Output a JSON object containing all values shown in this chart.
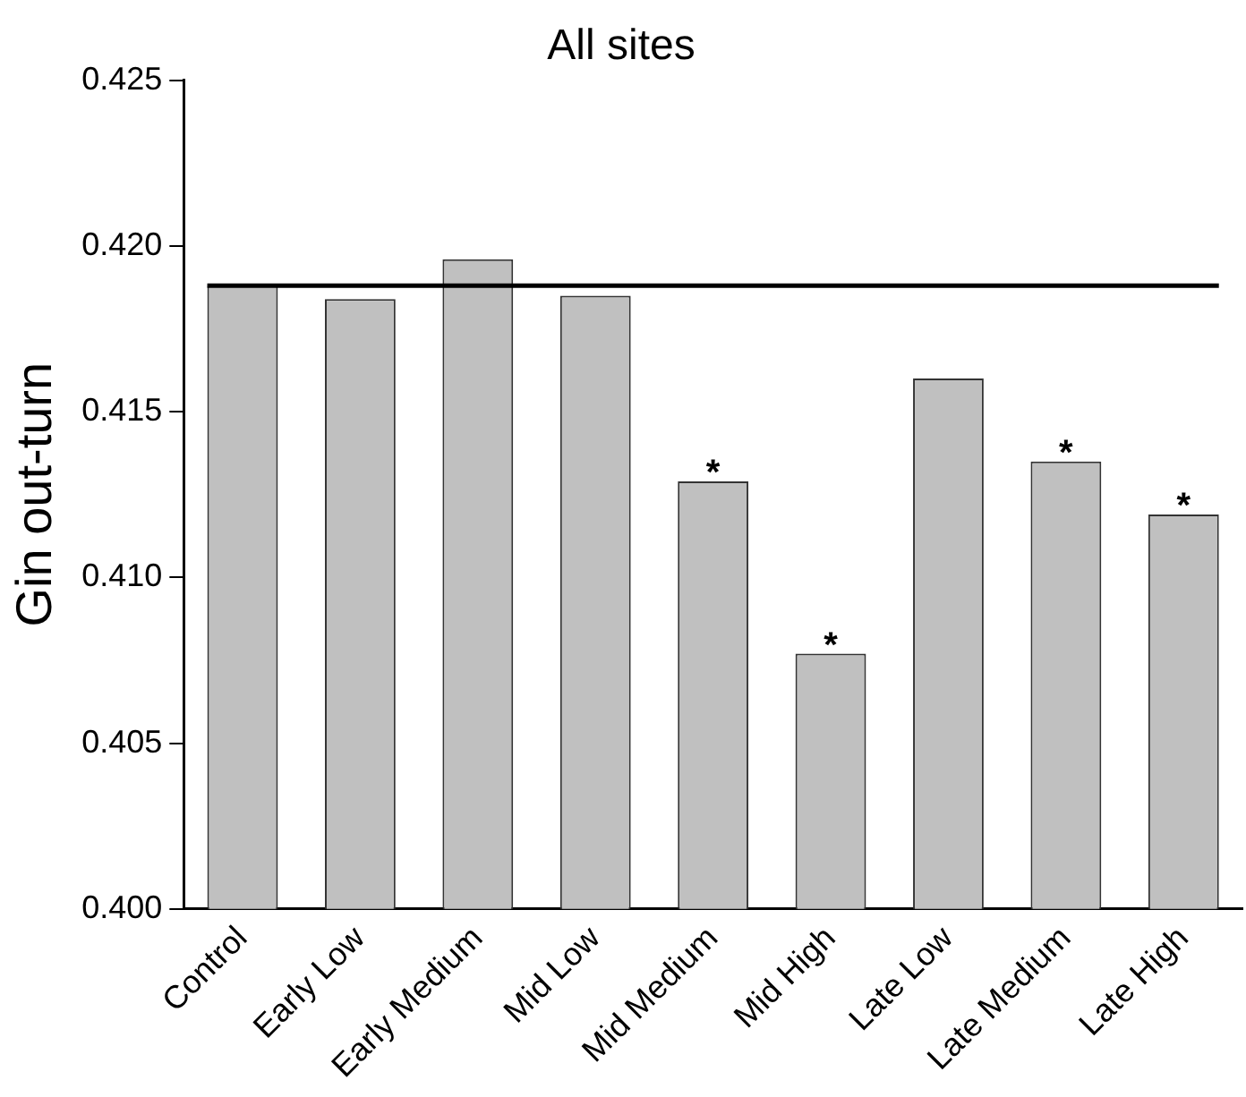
{
  "chart_data": {
    "type": "bar",
    "title": "All sites",
    "ylabel": "Gin out-turn",
    "categories": [
      "Control",
      "Early Low",
      "Early Medium",
      "Mid Low",
      "Mid Medium",
      "Mid High",
      "Late Low",
      "Late Medium",
      "Late High"
    ],
    "values": [
      0.4188,
      0.4184,
      0.4196,
      0.4185,
      0.4129,
      0.4077,
      0.416,
      0.4135,
      0.4119
    ],
    "color": "#c0c0c0",
    "ylim": [
      0.4,
      0.425
    ],
    "yticks": [
      {
        "value": 0.4,
        "label": "0.400"
      },
      {
        "value": 0.405,
        "label": "0.405"
      },
      {
        "value": 0.41,
        "label": "0.410"
      },
      {
        "value": 0.415,
        "label": "0.415"
      },
      {
        "value": 0.42,
        "label": "0.420"
      },
      {
        "value": 0.425,
        "label": "0.425"
      }
    ],
    "ref_lines": [
      {
        "axis": "y",
        "value": 0.4188,
        "color": "#000000"
      }
    ],
    "annotations": [
      {
        "text": "*",
        "x": "Mid Medium",
        "y": 0.4129
      },
      {
        "text": "*",
        "x": "Mid High",
        "y": 0.4077
      },
      {
        "text": "*",
        "x": "Late Medium",
        "y": 0.4135
      },
      {
        "text": "*",
        "x": "Late High",
        "y": 0.4119
      }
    ],
    "grid": false,
    "legend": false
  }
}
